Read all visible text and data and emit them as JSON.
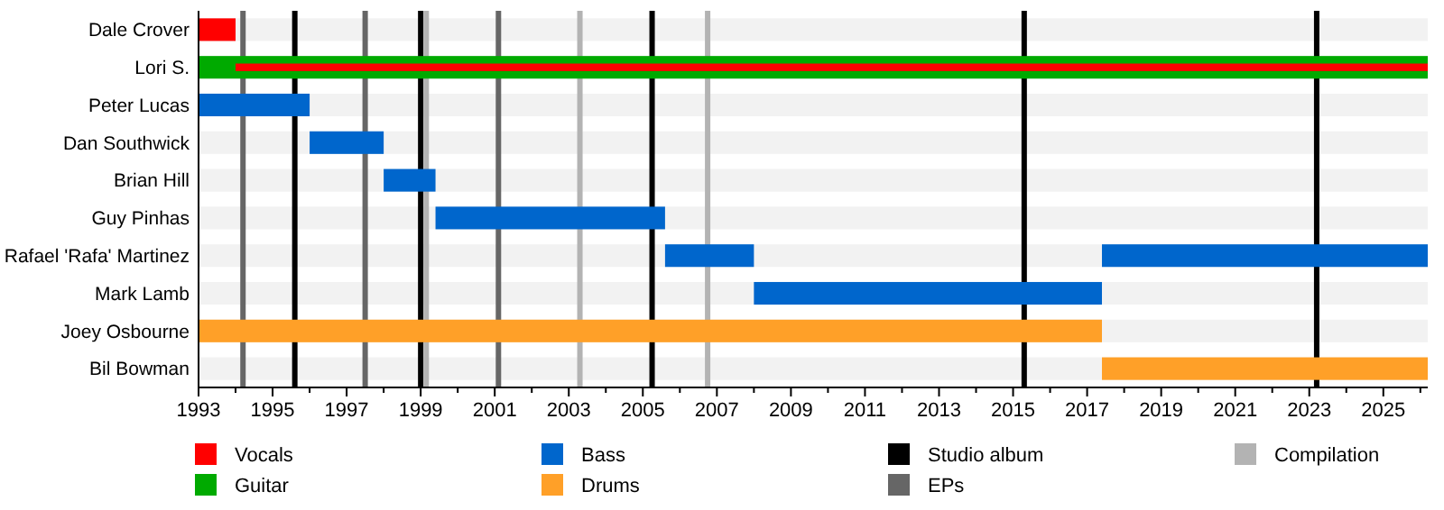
{
  "chart_data": {
    "type": "bar",
    "orientation": "horizontal",
    "legend": "bottom",
    "categories": [
      "Dale Crover",
      "Lori S.",
      "Peter Lucas",
      "Dan Southwick",
      "Brian Hill",
      "Guy Pinhas",
      "Rafael 'Rafa' Martinez",
      "Mark Lamb",
      "Joey Osbourne",
      "Bil Bowman"
    ],
    "series": [
      {
        "name": "Vocals",
        "color": "#ff0000",
        "values": [
          1,
          32.2,
          null,
          null,
          null,
          null,
          null,
          null,
          null,
          null
        ],
        "base": [
          1993,
          1994,
          null,
          null,
          null,
          null,
          null,
          null,
          null,
          null
        ]
      },
      {
        "name": "Guitar",
        "color": "#00aa00",
        "values": [
          null,
          33.2,
          null,
          null,
          null,
          null,
          null,
          null,
          null,
          null
        ],
        "base": [
          null,
          1993,
          null,
          null,
          null,
          null,
          null,
          null,
          null,
          null
        ]
      },
      {
        "name": "Bass",
        "color": "#0066cc",
        "values": [
          null,
          null,
          3,
          2,
          1.4,
          6.2,
          2.4,
          9.4,
          null,
          null
        ],
        "base": [
          null,
          null,
          1993,
          1996,
          1998,
          1999.4,
          2005.6,
          2008,
          null,
          null
        ]
      },
      {
        "color": "#0066cc",
        "values": [
          null,
          null,
          null,
          null,
          null,
          null,
          8.8,
          null,
          null,
          null
        ],
        "base": [
          null,
          null,
          null,
          null,
          null,
          null,
          2017.4,
          null,
          null,
          null
        ]
      },
      {
        "name": "Drums",
        "color": "#ffa028",
        "values": [
          null,
          null,
          null,
          null,
          null,
          null,
          null,
          null,
          24.4,
          8.8
        ],
        "base": [
          null,
          null,
          null,
          null,
          null,
          null,
          null,
          null,
          1993,
          2017.4
        ]
      }
    ],
    "ref_lines": [
      {
        "axis": "x",
        "value": 1995.6,
        "label": "Studio album",
        "color": "#000000"
      },
      {
        "axis": "x",
        "value": 1999.0,
        "color": "#000000"
      },
      {
        "axis": "x",
        "value": 2005.25,
        "color": "#000000"
      },
      {
        "axis": "x",
        "value": 2015.3,
        "color": "#000000"
      },
      {
        "axis": "x",
        "value": 2023.2,
        "color": "#000000"
      },
      {
        "axis": "x",
        "value": 1994.2,
        "label": "EPs",
        "color": "#666666"
      },
      {
        "axis": "x",
        "value": 1997.5,
        "color": "#666666"
      },
      {
        "axis": "x",
        "value": 2001.1,
        "color": "#666666"
      },
      {
        "axis": "x",
        "value": 1999.15,
        "label": "Compilation",
        "color": "#b3b3b3"
      },
      {
        "axis": "x",
        "value": 2003.3,
        "color": "#b3b3b3"
      },
      {
        "axis": "x",
        "value": 2006.75,
        "color": "#b3b3b3"
      }
    ],
    "xlim": [
      1993,
      2026.2
    ],
    "xticks": [
      1993,
      {
        "value": 1994,
        "label": null
      },
      1995,
      {
        "value": 1996,
        "label": null
      },
      1997,
      {
        "value": 1998,
        "label": null
      },
      1999,
      {
        "value": 2000,
        "label": null
      },
      2001,
      {
        "value": 2002,
        "label": null
      },
      2003,
      {
        "value": 2004,
        "label": null
      },
      2005,
      {
        "value": 2006,
        "label": null
      },
      2007,
      {
        "value": 2008,
        "label": null
      },
      2009,
      {
        "value": 2010,
        "label": null
      },
      2011,
      {
        "value": 2012,
        "label": null
      },
      2013,
      {
        "value": 2014,
        "label": null
      },
      2015,
      {
        "value": 2016,
        "label": null
      },
      2017,
      {
        "value": 2018,
        "label": null
      },
      2019,
      {
        "value": 2020,
        "label": null
      },
      2021,
      {
        "value": 2022,
        "label": null
      },
      2023,
      {
        "value": 2024,
        "label": null
      },
      2025,
      {
        "value": 2026,
        "label": null
      }
    ]
  }
}
